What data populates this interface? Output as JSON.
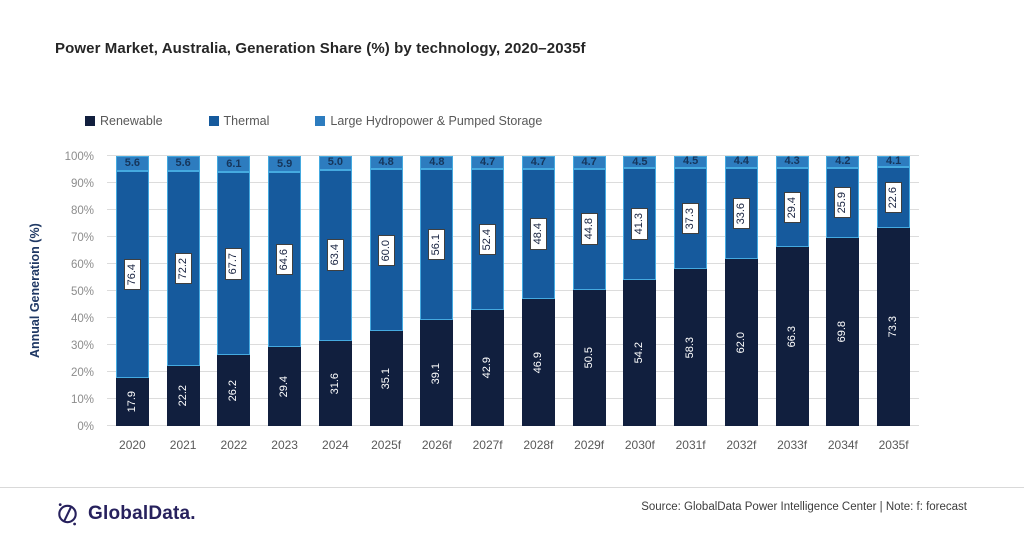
{
  "title": "Power Market, Australia, Generation Share (%) by technology, 2020–2035f",
  "y_axis": {
    "title": "Annual Generation (%)"
  },
  "chart_data": {
    "type": "bar",
    "stacked": true,
    "title": "Power Market, Australia, Generation Share (%) by technology, 2020–2035f",
    "ylabel": "Annual Generation (%)",
    "xlabel": "",
    "ylim": [
      0,
      100
    ],
    "grid": true,
    "legend_position": "top",
    "y_ticks": [
      "0%",
      "10%",
      "20%",
      "30%",
      "40%",
      "50%",
      "60%",
      "70%",
      "80%",
      "90%",
      "100%"
    ],
    "categories": [
      "2020",
      "2021",
      "2022",
      "2023",
      "2024",
      "2025f",
      "2026f",
      "2027f",
      "2028f",
      "2029f",
      "2030f",
      "2031f",
      "2032f",
      "2033f",
      "2034f",
      "2035f"
    ],
    "series": [
      {
        "name": "Renewable",
        "color": "#111f3e",
        "values": [
          17.9,
          22.2,
          26.2,
          29.4,
          31.6,
          35.1,
          39.1,
          42.9,
          46.9,
          50.5,
          54.2,
          58.3,
          62.0,
          66.3,
          69.8,
          73.3
        ],
        "labels": [
          "17.9",
          "22.2",
          "26.2",
          "29.4",
          "31.6",
          "35.1",
          "39.1",
          "42.9",
          "46.9",
          "50.5",
          "54.2",
          "58.3",
          "62.0",
          "66.3",
          "69.8",
          "73.3"
        ]
      },
      {
        "name": "Thermal",
        "color": "#165a9d",
        "values": [
          76.4,
          72.2,
          67.7,
          64.6,
          63.4,
          60.0,
          56.1,
          52.4,
          48.4,
          44.8,
          41.3,
          37.3,
          33.6,
          29.4,
          25.9,
          22.6
        ],
        "labels": [
          "76.4",
          "72.2",
          "67.7",
          "64.6",
          "63.4",
          "60.0",
          "56.1",
          "52.4",
          "48.4",
          "44.8",
          "41.3",
          "37.3",
          "33.6",
          "29.4",
          "25.9",
          "22.6"
        ]
      },
      {
        "name": "Large Hydropower & Pumped Storage",
        "color": "#2d7cbf",
        "values": [
          5.6,
          5.6,
          6.1,
          5.9,
          5.0,
          4.8,
          4.8,
          4.7,
          4.7,
          4.7,
          4.5,
          4.5,
          4.4,
          4.3,
          4.2,
          4.1
        ],
        "labels": [
          "5.6",
          "5.6",
          "6.1",
          "5.9",
          "5.0",
          "4.8",
          "4.8",
          "4.7",
          "4.7",
          "4.7",
          "4.5",
          "4.5",
          "4.4",
          "4.3",
          "4.2",
          "4.1"
        ]
      }
    ],
    "segment_outline_color": "#45aae0"
  },
  "footer": {
    "brand": "GlobalData.",
    "source": "Source: GlobalData Power Intelligence Center | Note: f: forecast"
  }
}
